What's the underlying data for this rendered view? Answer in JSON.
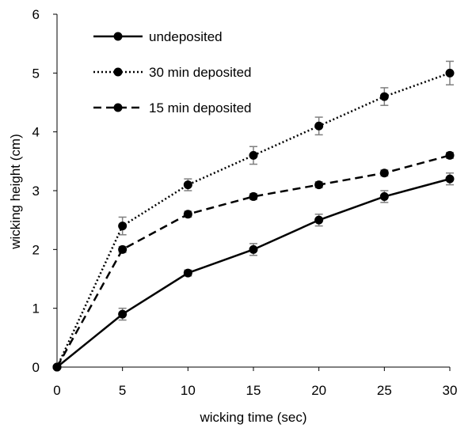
{
  "chart_data": {
    "type": "line",
    "xlabel": "wicking time (sec)",
    "ylabel": "wicking height (cm)",
    "xlim": [
      0,
      30
    ],
    "ylim": [
      0,
      6
    ],
    "x_ticks": [
      "0",
      "5",
      "10",
      "15",
      "20",
      "25",
      "30"
    ],
    "y_ticks": [
      "0",
      "1",
      "2",
      "3",
      "4",
      "5",
      "6"
    ],
    "grid": false,
    "legend_position": "top-left",
    "x": [
      0,
      5,
      10,
      15,
      20,
      25,
      30
    ],
    "series": [
      {
        "name": "undeposited",
        "line_style": "solid",
        "color": "#000000",
        "values": [
          0,
          0.9,
          1.6,
          2.0,
          2.5,
          2.9,
          3.2
        ],
        "errors": [
          0,
          0.1,
          0.05,
          0.1,
          0.1,
          0.1,
          0.1
        ]
      },
      {
        "name": "30 min deposited",
        "line_style": "dotted",
        "color": "#000000",
        "values": [
          0,
          2.4,
          3.1,
          3.6,
          4.1,
          4.6,
          5.0
        ],
        "errors": [
          0,
          0.15,
          0.1,
          0.15,
          0.15,
          0.15,
          0.2
        ]
      },
      {
        "name": "15 min deposited",
        "line_style": "dashed",
        "color": "#000000",
        "values": [
          0,
          2.0,
          2.6,
          2.9,
          3.1,
          3.3,
          3.6
        ],
        "errors": [
          0,
          0.05,
          0.05,
          0.05,
          0.05,
          0.05,
          0.05
        ]
      }
    ],
    "error_bar_color": "#7f7f7f"
  }
}
